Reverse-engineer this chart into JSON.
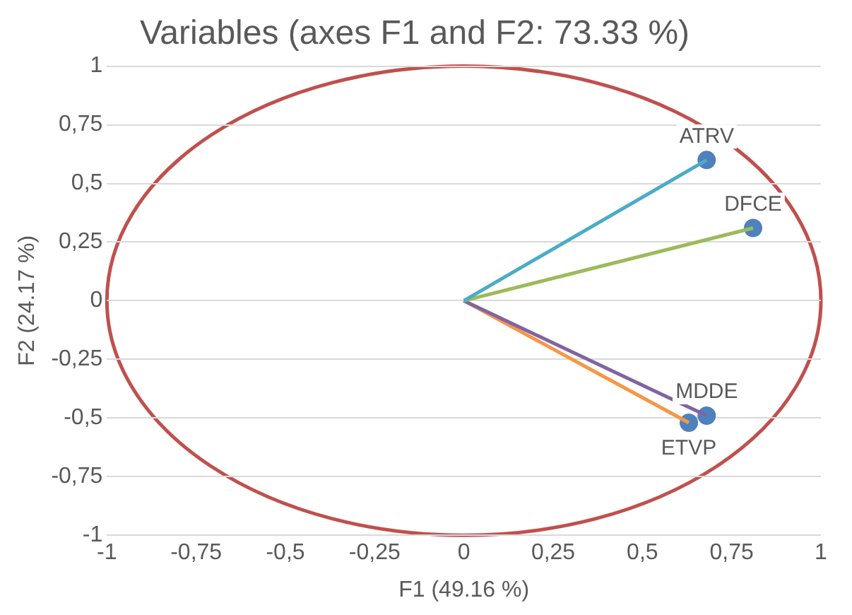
{
  "chart_data": {
    "type": "scatter",
    "title": "Variables (axes F1 and F2: 73.33 %)",
    "xlabel": "F1 (49.16 %)",
    "ylabel": "F2 (24.17 %)",
    "xlim": [
      -1,
      1
    ],
    "ylim": [
      -1,
      1
    ],
    "xticks": [
      -1,
      {
        "value": -0.75,
        "label": "-0,75"
      },
      {
        "value": -0.5,
        "label": "-0,5"
      },
      {
        "value": -0.25,
        "label": "-0,25"
      },
      0,
      {
        "value": 0.25,
        "label": "0,25"
      },
      {
        "value": 0.5,
        "label": "0,5"
      },
      {
        "value": 0.75,
        "label": "0,75"
      },
      1
    ],
    "yticks": [
      -1,
      {
        "value": -0.75,
        "label": "-0,75"
      },
      {
        "value": -0.5,
        "label": "-0,5"
      },
      {
        "value": -0.25,
        "label": "-0,25"
      },
      0,
      {
        "value": 0.25,
        "label": "0,25"
      },
      {
        "value": 0.5,
        "label": "0,5"
      },
      {
        "value": 0.75,
        "label": "0,75"
      },
      1
    ],
    "grid": "y",
    "legend": false,
    "marker": "circle",
    "series": [
      {
        "type": "line",
        "marker": "none",
        "color": "#4bacc6",
        "x": [
          0,
          0.68
        ],
        "values": [
          0,
          0.6
        ]
      },
      {
        "type": "line",
        "marker": "none",
        "color": "#9bbb59",
        "x": [
          0,
          0.81
        ],
        "values": [
          0,
          0.31
        ]
      },
      {
        "type": "line",
        "marker": "none",
        "color": "#8064a2",
        "x": [
          0,
          0.68
        ],
        "values": [
          0,
          -0.49
        ]
      },
      {
        "type": "line",
        "marker": "none",
        "color": "#f79646",
        "x": [
          0,
          0.63
        ],
        "values": [
          0,
          -0.52
        ]
      },
      {
        "type": "scatter",
        "name": "ATRV",
        "color": "#4f81bd",
        "x": [
          0.68
        ],
        "values": [
          0.6
        ]
      },
      {
        "type": "scatter",
        "name": "DFCE",
        "color": "#4f81bd",
        "x": [
          0.81
        ],
        "values": [
          0.31
        ]
      },
      {
        "type": "scatter",
        "name": "MDDE",
        "color": "#4f81bd",
        "x": [
          0.68
        ],
        "values": [
          -0.49
        ]
      },
      {
        "type": "scatter",
        "name": "ETVP",
        "color": "#4f81bd",
        "x": [
          0.63
        ],
        "values": [
          -0.52
        ]
      }
    ]
  }
}
